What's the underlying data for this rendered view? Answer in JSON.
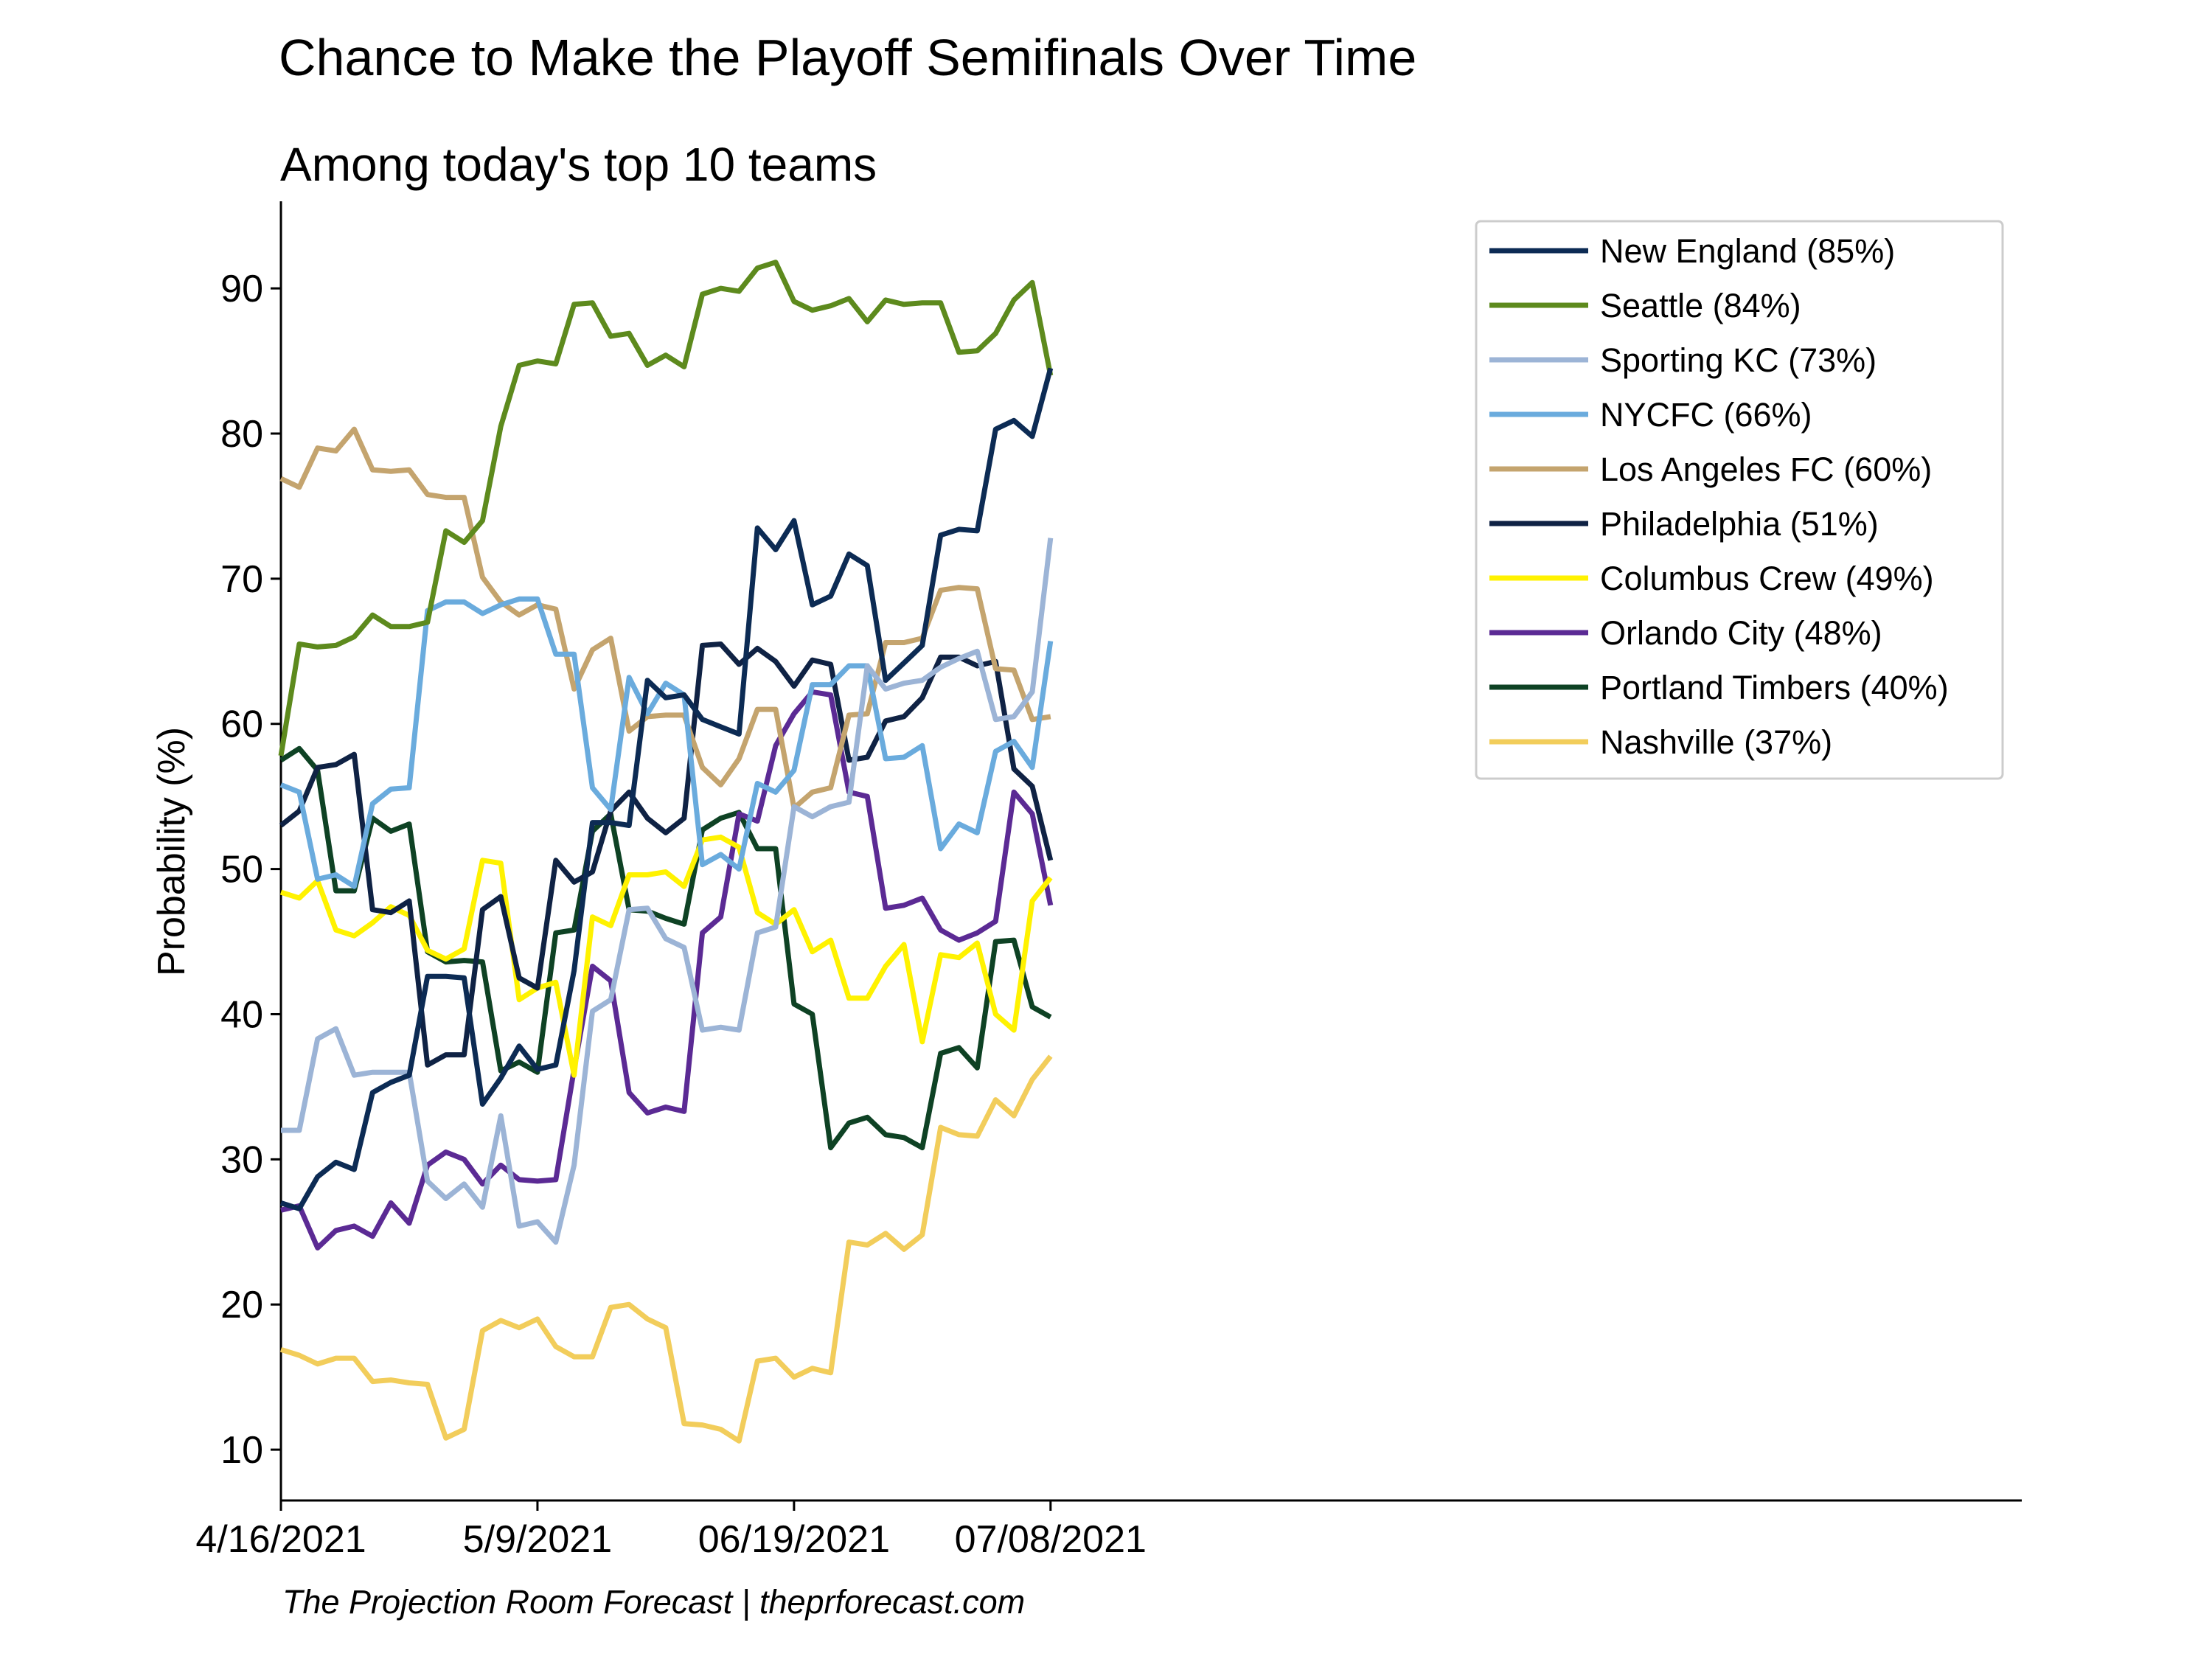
{
  "chart_data": {
    "type": "line",
    "title": "Chance to Make the Playoff Semifinals Over Time",
    "subtitle": "Among today's top 10 teams",
    "ylabel": "Probability (%)",
    "xlabel": "",
    "ylim": [
      6.5,
      96
    ],
    "y_ticks": [
      10,
      20,
      30,
      40,
      50,
      60,
      70,
      80,
      90
    ],
    "x_ticks": [
      {
        "label": "4/16/2021",
        "index": 0
      },
      {
        "label": "5/9/2021",
        "index": 14
      },
      {
        "label": "06/19/2021",
        "index": 28
      },
      {
        "label": "07/08/2021",
        "index": 42
      }
    ],
    "x_max_index": 95,
    "grid": false,
    "legend_position": "top-right",
    "series": [
      {
        "name": "New England (85%)",
        "color": "#0c2b54",
        "values": [
          27,
          26.6,
          28.8,
          29.8,
          29.3,
          34.6,
          35.3,
          35.8,
          42.6,
          42.6,
          42.5,
          33.8,
          35.6,
          37.8,
          36.2,
          36.5,
          43,
          53.2,
          53.2,
          53,
          63,
          61.8,
          62,
          60.3,
          59.8,
          59.3,
          73.5,
          72,
          74,
          68.2,
          68.8,
          71.7,
          70.9,
          63,
          64.2,
          65.4,
          73,
          73.4,
          73.3,
          80.3,
          80.9,
          79.8,
          84.5
        ]
      },
      {
        "name": "Seattle (84%)",
        "color": "#5d8a1d",
        "values": [
          57.8,
          65.5,
          65.3,
          65.4,
          66,
          67.5,
          66.7,
          66.7,
          67,
          73.3,
          72.5,
          74,
          80.5,
          84.7,
          85,
          84.8,
          88.9,
          89,
          86.7,
          86.9,
          84.7,
          85.4,
          84.6,
          89.6,
          90,
          89.8,
          91.4,
          91.8,
          89.1,
          88.5,
          88.8,
          89.3,
          87.7,
          89.2,
          88.9,
          89,
          89,
          85.6,
          85.7,
          86.9,
          89.2,
          90.4,
          84
        ]
      },
      {
        "name": "Sporting KC (73%)",
        "color": "#9cb4d6",
        "values": [
          32,
          32,
          38.3,
          39,
          35.8,
          36,
          36,
          36,
          28.5,
          27.3,
          28.3,
          26.7,
          33,
          25.4,
          25.7,
          24.3,
          29.6,
          40.2,
          41,
          47.2,
          47.3,
          45.2,
          44.6,
          38.9,
          39.1,
          38.9,
          45.6,
          46,
          54.3,
          53.6,
          54.3,
          54.6,
          64,
          62.4,
          62.8,
          63,
          63.9,
          64.5,
          65,
          60.3,
          60.5,
          62.2,
          72.8
        ]
      },
      {
        "name": "NYCFC (66%)",
        "color": "#6aabdd",
        "values": [
          55.8,
          55.3,
          49.3,
          49.6,
          48.8,
          54.5,
          55.5,
          55.6,
          67.8,
          68.4,
          68.4,
          67.6,
          68.2,
          68.6,
          68.6,
          64.8,
          64.8,
          55.6,
          54.1,
          63.2,
          60.7,
          62.8,
          62,
          50.3,
          51,
          50,
          55.9,
          55.3,
          56.8,
          62.7,
          62.7,
          64,
          64,
          57.6,
          57.7,
          58.5,
          51.4,
          53.1,
          52.5,
          58.1,
          58.8,
          57,
          65.7
        ]
      },
      {
        "name": "Los Angeles FC (60%)",
        "color": "#c4a46e",
        "values": [
          76.9,
          76.3,
          79,
          78.8,
          80.3,
          77.5,
          77.4,
          77.5,
          75.8,
          75.6,
          75.6,
          70.1,
          68.4,
          67.5,
          68.2,
          67.9,
          62.4,
          65.1,
          65.9,
          59.5,
          60.5,
          60.6,
          60.6,
          57,
          55.8,
          57.6,
          61,
          61,
          54.2,
          55.3,
          55.6,
          60.6,
          60.7,
          65.6,
          65.6,
          65.9,
          69.2,
          69.4,
          69.3,
          63.8,
          63.7,
          60.3,
          60.5
        ]
      },
      {
        "name": "Philadelphia (51%)",
        "color": "#0f2244",
        "values": [
          53,
          54,
          57,
          57.2,
          57.9,
          47.2,
          47,
          47.8,
          36.5,
          37.2,
          37.2,
          47.2,
          48.1,
          42.5,
          41.8,
          50.6,
          49.1,
          49.8,
          54,
          55.3,
          53.5,
          52.5,
          53.5,
          65.4,
          65.5,
          64.1,
          65.2,
          64.3,
          62.6,
          64.4,
          64.1,
          57.5,
          57.7,
          60.2,
          60.5,
          61.8,
          64.6,
          64.6,
          64,
          64.3,
          56.9,
          55.7,
          50.6
        ]
      },
      {
        "name": "Columbus Crew (49%)",
        "color": "#fff200",
        "values": [
          48.4,
          48,
          49.2,
          45.8,
          45.4,
          46.3,
          47.4,
          46.8,
          44.4,
          43.8,
          44.5,
          50.6,
          50.4,
          41,
          41.8,
          42.2,
          35.8,
          46.7,
          46.1,
          49.6,
          49.6,
          49.8,
          48.8,
          52,
          52.2,
          51.5,
          47,
          46.2,
          47.2,
          44.3,
          45.1,
          41.1,
          41.1,
          43.3,
          44.8,
          38.1,
          44.1,
          43.9,
          44.9,
          40,
          38.9,
          47.8,
          49.4
        ]
      },
      {
        "name": "Orlando City (48%)",
        "color": "#5b2a94",
        "values": [
          26.5,
          26.8,
          23.9,
          25.1,
          25.4,
          24.7,
          27,
          25.6,
          29.6,
          30.5,
          30,
          28.3,
          29.6,
          28.6,
          28.5,
          28.6,
          36.2,
          43.3,
          42.3,
          34.6,
          33.2,
          33.6,
          33.3,
          45.6,
          46.7,
          53.8,
          53.3,
          58.5,
          60.7,
          62.2,
          62,
          55.3,
          55,
          47.3,
          47.5,
          48,
          45.8,
          45.1,
          45.6,
          46.4,
          55.3,
          53.8,
          47.5
        ]
      },
      {
        "name": "Portland Timbers (40%)",
        "color": "#0e4224",
        "values": [
          57.5,
          58.3,
          56.8,
          48.5,
          48.5,
          53.5,
          52.6,
          53.1,
          44.3,
          43.6,
          43.7,
          43.6,
          36.1,
          36.7,
          36,
          45.6,
          45.8,
          52.6,
          53.8,
          47.2,
          47.1,
          46.6,
          46.2,
          52.7,
          53.5,
          53.9,
          51.4,
          51.4,
          40.7,
          40,
          30.8,
          32.5,
          32.9,
          31.7,
          31.5,
          30.8,
          37.3,
          37.7,
          36.3,
          45,
          45.1,
          40.5,
          39.8
        ]
      },
      {
        "name": "Nashville (37%)",
        "color": "#f2cd5b",
        "values": [
          16.9,
          16.5,
          15.9,
          16.3,
          16.3,
          14.7,
          14.8,
          14.6,
          14.5,
          10.8,
          11.4,
          18.2,
          18.9,
          18.4,
          19,
          17.1,
          16.4,
          16.4,
          19.8,
          20,
          19,
          18.4,
          11.8,
          11.7,
          11.4,
          10.6,
          16.1,
          16.3,
          15,
          15.6,
          15.3,
          24.3,
          24.1,
          24.9,
          23.8,
          24.8,
          32.2,
          31.7,
          31.6,
          34.1,
          33,
          35.5,
          37.1
        ]
      }
    ]
  },
  "credit": "The Projection Room Forecast | theprforecast.com"
}
